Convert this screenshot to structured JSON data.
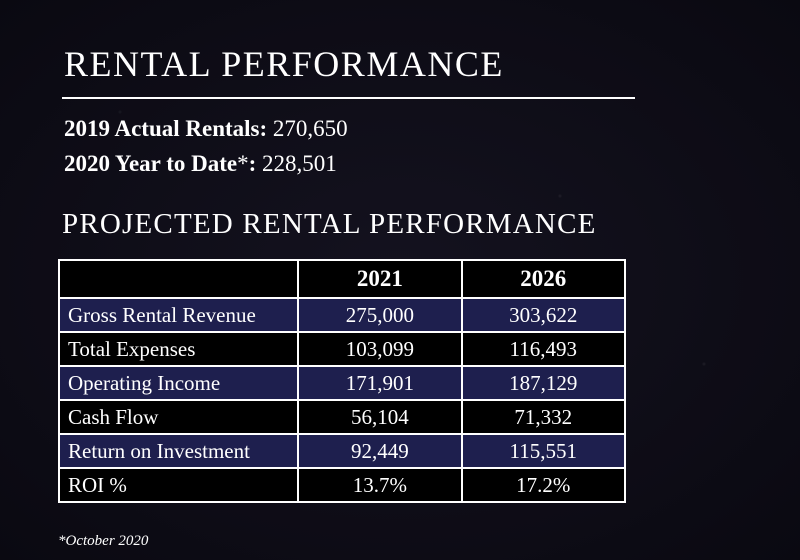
{
  "header": {
    "title": "RENTAL PERFORMANCE"
  },
  "stats": [
    {
      "label": "2019 Actual Rentals:",
      "value": "270,650"
    },
    {
      "label": "2020 Year to Date",
      "marker": "*",
      "colon": ":",
      "value": "228,501"
    }
  ],
  "projected": {
    "title": "PROJECTED RENTAL PERFORMANCE",
    "columns": [
      "",
      "2021",
      "2026"
    ],
    "rows": [
      {
        "label": "Gross Rental Revenue",
        "values": [
          "275,000",
          "303,622"
        ]
      },
      {
        "label": "Total Expenses",
        "values": [
          "103,099",
          "116,493"
        ]
      },
      {
        "label": "Operating Income",
        "values": [
          "171,901",
          "187,129"
        ]
      },
      {
        "label": "Cash Flow",
        "values": [
          "56,104",
          "71,332"
        ]
      },
      {
        "label": "Return on Investment",
        "values": [
          "92,449",
          "115,551"
        ]
      },
      {
        "label": "ROI %",
        "values": [
          "13.7%",
          "17.2%"
        ]
      }
    ]
  },
  "footnote": "*October 2020",
  "colors": {
    "background": "#0b0a14",
    "row_shade": "#1e1f4e",
    "text": "#ffffff"
  }
}
